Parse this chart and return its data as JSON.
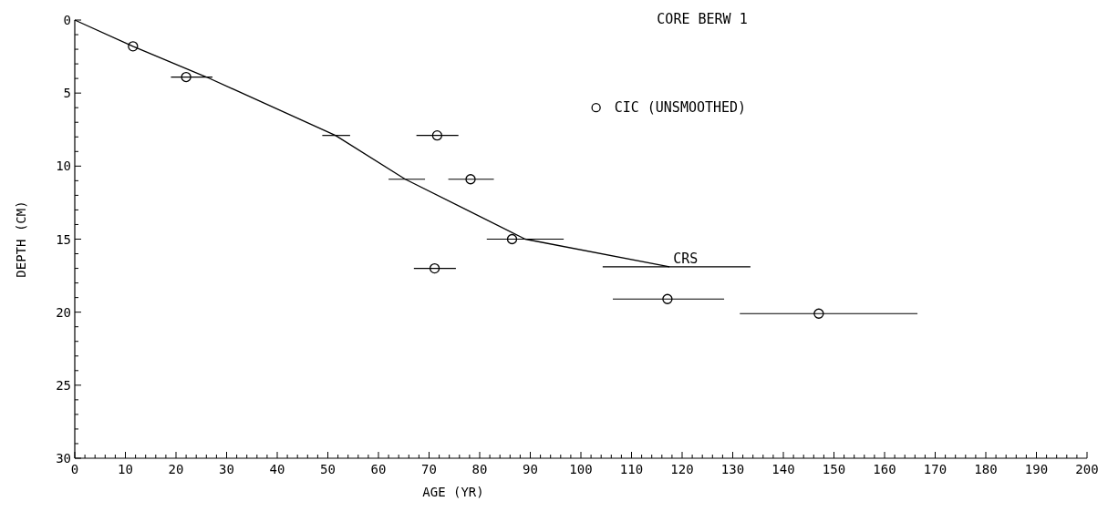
{
  "chart_data": {
    "type": "scatter",
    "title": "CORE BERW 1",
    "xlabel": "AGE (YR)",
    "ylabel": "DEPTH (CM)",
    "xlim": [
      0,
      200
    ],
    "ylim": [
      30,
      0
    ],
    "xticks": [
      0,
      {
        "value": 2,
        "label": null
      },
      {
        "value": 4,
        "label": null
      },
      {
        "value": 6,
        "label": null
      },
      {
        "value": 8,
        "label": null
      },
      10,
      {
        "value": 12,
        "label": null
      },
      {
        "value": 14,
        "label": null
      },
      {
        "value": 16,
        "label": null
      },
      {
        "value": 18,
        "label": null
      },
      20,
      {
        "value": 22,
        "label": null
      },
      {
        "value": 24,
        "label": null
      },
      {
        "value": 26,
        "label": null
      },
      {
        "value": 28,
        "label": null
      },
      30,
      {
        "value": 32,
        "label": null
      },
      {
        "value": 34,
        "label": null
      },
      {
        "value": 36,
        "label": null
      },
      {
        "value": 38,
        "label": null
      },
      40,
      {
        "value": 42,
        "label": null
      },
      {
        "value": 44,
        "label": null
      },
      {
        "value": 46,
        "label": null
      },
      {
        "value": 48,
        "label": null
      },
      50,
      {
        "value": 52,
        "label": null
      },
      {
        "value": 54,
        "label": null
      },
      {
        "value": 56,
        "label": null
      },
      {
        "value": 58,
        "label": null
      },
      60,
      {
        "value": 62,
        "label": null
      },
      {
        "value": 64,
        "label": null
      },
      {
        "value": 66,
        "label": null
      },
      {
        "value": 68,
        "label": null
      },
      70,
      {
        "value": 72,
        "label": null
      },
      {
        "value": 74,
        "label": null
      },
      {
        "value": 76,
        "label": null
      },
      {
        "value": 78,
        "label": null
      },
      80,
      {
        "value": 82,
        "label": null
      },
      {
        "value": 84,
        "label": null
      },
      {
        "value": 86,
        "label": null
      },
      {
        "value": 88,
        "label": null
      },
      90,
      {
        "value": 92,
        "label": null
      },
      {
        "value": 94,
        "label": null
      },
      {
        "value": 96,
        "label": null
      },
      {
        "value": 98,
        "label": null
      },
      100,
      {
        "value": 102,
        "label": null
      },
      {
        "value": 104,
        "label": null
      },
      {
        "value": 106,
        "label": null
      },
      {
        "value": 108,
        "label": null
      },
      110,
      {
        "value": 112,
        "label": null
      },
      {
        "value": 114,
        "label": null
      },
      {
        "value": 116,
        "label": null
      },
      {
        "value": 118,
        "label": null
      },
      120,
      {
        "value": 122,
        "label": null
      },
      {
        "value": 124,
        "label": null
      },
      {
        "value": 126,
        "label": null
      },
      {
        "value": 128,
        "label": null
      },
      130,
      {
        "value": 132,
        "label": null
      },
      {
        "value": 134,
        "label": null
      },
      {
        "value": 136,
        "label": null
      },
      {
        "value": 138,
        "label": null
      },
      140,
      {
        "value": 142,
        "label": null
      },
      {
        "value": 144,
        "label": null
      },
      {
        "value": 146,
        "label": null
      },
      {
        "value": 148,
        "label": null
      },
      150,
      {
        "value": 152,
        "label": null
      },
      {
        "value": 154,
        "label": null
      },
      {
        "value": 156,
        "label": null
      },
      {
        "value": 158,
        "label": null
      },
      160,
      {
        "value": 162,
        "label": null
      },
      {
        "value": 164,
        "label": null
      },
      {
        "value": 166,
        "label": null
      },
      {
        "value": 168,
        "label": null
      },
      170,
      {
        "value": 172,
        "label": null
      },
      {
        "value": 174,
        "label": null
      },
      {
        "value": 176,
        "label": null
      },
      {
        "value": 178,
        "label": null
      },
      180,
      {
        "value": 182,
        "label": null
      },
      {
        "value": 184,
        "label": null
      },
      {
        "value": 186,
        "label": null
      },
      {
        "value": 188,
        "label": null
      },
      190,
      {
        "value": 192,
        "label": null
      },
      {
        "value": 194,
        "label": null
      },
      {
        "value": 196,
        "label": null
      },
      {
        "value": 198,
        "label": null
      },
      200
    ],
    "yticks": [
      0,
      {
        "value": 1,
        "label": null
      },
      {
        "value": 2,
        "label": null
      },
      {
        "value": 3,
        "label": null
      },
      {
        "value": 4,
        "label": null
      },
      5,
      {
        "value": 6,
        "label": null
      },
      {
        "value": 7,
        "label": null
      },
      {
        "value": 8,
        "label": null
      },
      {
        "value": 9,
        "label": null
      },
      10,
      {
        "value": 11,
        "label": null
      },
      {
        "value": 12,
        "label": null
      },
      {
        "value": 13,
        "label": null
      },
      {
        "value": 14,
        "label": null
      },
      15,
      {
        "value": 16,
        "label": null
      },
      {
        "value": 17,
        "label": null
      },
      {
        "value": 18,
        "label": null
      },
      {
        "value": 19,
        "label": null
      },
      20,
      {
        "value": 21,
        "label": null
      },
      {
        "value": 22,
        "label": null
      },
      {
        "value": 23,
        "label": null
      },
      {
        "value": 24,
        "label": null
      },
      25,
      {
        "value": 26,
        "label": null
      },
      {
        "value": 27,
        "label": null
      },
      {
        "value": 28,
        "label": null
      },
      {
        "value": 29,
        "label": null
      },
      30
    ],
    "legend": "top right",
    "grid": false,
    "series": [
      {
        "name": "CIC (UNSMOOTHED)",
        "type": "scatter",
        "marker": "circle",
        "color": "#000000",
        "x": [
          11.5,
          22,
          71.6,
          78.2,
          86.4,
          71.1,
          117.1,
          147
        ],
        "values": [
          1.8,
          3.9,
          7.9,
          10.9,
          15,
          17,
          19.1,
          20.1
        ],
        "xerrors": [
          null,
          [
            19,
            27.2
          ],
          [
            67.5,
            75.8
          ],
          [
            73.8,
            82.8
          ],
          null,
          [
            67,
            75.3
          ],
          [
            106.3,
            128.3
          ],
          [
            131.4,
            166.5
          ]
        ]
      },
      {
        "name": "CRS",
        "type": "line",
        "marker": "none",
        "line_style": "solid",
        "color": "#000000",
        "x": [
          0,
          11.5,
          26,
          51.5,
          65.3,
          89,
          117.5
        ],
        "values": [
          0,
          1.8,
          3.9,
          7.9,
          10.9,
          15,
          16.9
        ],
        "xerrors": [
          null,
          null,
          null,
          [
            48.9,
            54.4
          ],
          [
            62,
            69.2
          ],
          [
            81.4,
            96.6
          ],
          [
            104.3,
            133.5
          ]
        ]
      }
    ]
  }
}
